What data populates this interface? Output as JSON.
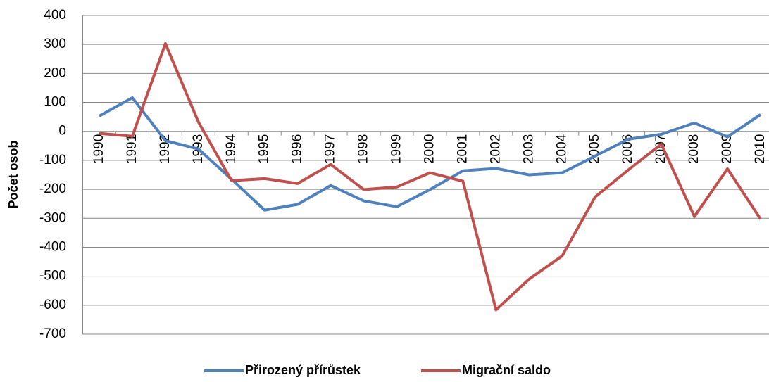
{
  "chart_data": {
    "type": "line",
    "y_label": "Počet osob",
    "categories": [
      "1990",
      "1991",
      "1992",
      "1993",
      "1994",
      "1995",
      "1996",
      "1997",
      "1998",
      "1999",
      "2000",
      "2001",
      "2002",
      "2003",
      "2004",
      "2005",
      "2006",
      "2007",
      "2008",
      "2009",
      "2010"
    ],
    "series": [
      {
        "name": "Přirozený přírůstek",
        "color": "#4f81bd",
        "values": [
          53,
          116,
          -32,
          -61,
          -165,
          -272,
          -252,
          -187,
          -240,
          -260,
          -201,
          -136,
          -128,
          -150,
          -143,
          -85,
          -27,
          -10,
          29,
          -19,
          58
        ]
      },
      {
        "name": "Migrační saldo",
        "color": "#c0504d",
        "values": [
          -7,
          -17,
          303,
          32,
          -170,
          -163,
          -180,
          -114,
          -201,
          -192,
          -143,
          -172,
          -616,
          -510,
          -430,
          -226,
          -133,
          -44,
          -294,
          -129,
          -303
        ]
      }
    ],
    "ylim": [
      -700,
      400
    ],
    "yticks": [
      -700,
      -600,
      -500,
      -400,
      -300,
      -200,
      -100,
      0,
      100,
      200,
      300,
      400
    ],
    "grid": true,
    "legend": "bottom"
  }
}
